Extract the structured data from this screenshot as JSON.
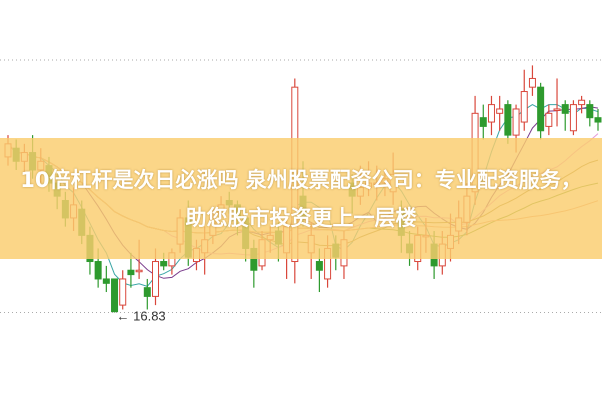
{
  "banner": {
    "title": "10倍杠杆是次日必涨吗 泉州股票配资公司：专业配资服务，助您股市投资更上一层楼"
  },
  "chart_data": {
    "type": "candlestick",
    "ylim": [
      14.8,
      24.0
    ],
    "grid": "dotted lines at top and at low",
    "annotations": [
      {
        "text": "16.83",
        "label": "← 16.83",
        "target": "lowest low"
      }
    ],
    "colors": {
      "up": "#d9473b",
      "down": "#2e9a2e",
      "ma": [
        "#3aa6a6",
        "#7a3c8c",
        "#e59ad8",
        "#a08a3a",
        "#6e9b2e",
        "#e8a080"
      ]
    },
    "candles": [
      [
        20.4,
        20.7,
        20.9,
        20.2
      ],
      [
        20.6,
        20.3,
        20.8,
        20.1
      ],
      [
        20.3,
        20.5,
        20.7,
        20.0
      ],
      [
        20.5,
        20.1,
        20.9,
        19.9
      ],
      [
        20.1,
        20.3,
        20.6,
        19.8
      ],
      [
        20.2,
        19.8,
        20.4,
        19.6
      ],
      [
        19.8,
        19.5,
        20.0,
        19.2
      ],
      [
        19.4,
        19.0,
        19.6,
        18.8
      ],
      [
        19.0,
        19.3,
        19.7,
        18.7
      ],
      [
        19.2,
        18.6,
        19.4,
        18.4
      ],
      [
        18.6,
        18.0,
        18.8,
        17.7
      ],
      [
        18.0,
        17.6,
        18.3,
        17.4
      ],
      [
        17.6,
        17.5,
        17.9,
        17.3
      ],
      [
        17.6,
        16.85,
        17.6,
        16.83
      ],
      [
        17.0,
        17.6,
        17.8,
        16.9
      ],
      [
        17.8,
        17.7,
        18.2,
        17.4
      ],
      [
        17.8,
        17.8,
        18.5,
        17.6
      ],
      [
        17.4,
        17.2,
        17.6,
        16.9
      ],
      [
        17.2,
        18.0,
        18.3,
        17.0
      ],
      [
        18.0,
        17.9,
        18.2,
        17.8
      ],
      [
        17.9,
        18.2,
        18.3,
        17.7
      ],
      [
        18.4,
        19.0,
        19.2,
        18.2
      ],
      [
        19.0,
        18.1,
        19.4,
        17.9
      ],
      [
        18.0,
        18.3,
        18.5,
        17.8
      ],
      [
        18.2,
        18.5,
        18.8,
        17.7
      ],
      [
        18.6,
        19.0,
        19.2,
        18.4
      ],
      [
        19.1,
        19.3,
        19.5,
        19.0
      ],
      [
        19.4,
        19.3,
        19.6,
        19.1
      ],
      [
        19.3,
        19.0,
        19.4,
        18.6
      ],
      [
        19.0,
        18.3,
        19.2,
        18.0
      ],
      [
        18.3,
        17.8,
        18.5,
        17.4
      ],
      [
        17.9,
        18.5,
        18.7,
        17.8
      ],
      [
        18.5,
        18.6,
        18.8,
        18.2
      ],
      [
        18.7,
        18.4,
        18.9,
        18.0
      ],
      [
        18.2,
        18.8,
        19.0,
        17.6
      ],
      [
        18.0,
        22.0,
        22.2,
        17.5
      ],
      [
        19.5,
        19.0,
        20.3,
        18.8
      ],
      [
        18.2,
        18.6,
        18.9,
        17.6
      ],
      [
        18.0,
        17.8,
        18.3,
        17.3
      ],
      [
        17.6,
        18.3,
        18.6,
        17.4
      ],
      [
        18.4,
        18.1,
        18.6,
        17.8
      ],
      [
        17.9,
        18.5,
        18.7,
        17.6
      ],
      [
        19.8,
        19.5,
        20.0,
        19.1
      ],
      [
        19.5,
        19.7,
        20.2,
        19.3
      ],
      [
        19.7,
        19.8,
        20.3,
        19.5
      ],
      [
        19.8,
        19.8,
        20.2,
        19.4
      ],
      [
        19.8,
        19.9,
        20.1,
        19.5
      ],
      [
        19.6,
        20.0,
        20.5,
        19.3
      ],
      [
        19.2,
        18.6,
        19.4,
        18.2
      ],
      [
        18.4,
        18.2,
        18.7,
        17.9
      ],
      [
        18.0,
        18.6,
        18.8,
        17.8
      ],
      [
        18.6,
        18.6,
        19.0,
        18.2
      ],
      [
        18.4,
        17.9,
        18.7,
        17.6
      ],
      [
        17.9,
        18.4,
        18.7,
        17.7
      ],
      [
        18.3,
        18.6,
        19.1,
        18.0
      ],
      [
        18.7,
        19.0,
        19.4,
        18.4
      ],
      [
        18.9,
        19.5,
        19.8,
        18.6
      ],
      [
        19.6,
        21.4,
        21.8,
        19.3
      ],
      [
        21.3,
        21.1,
        21.6,
        20.8
      ],
      [
        21.2,
        21.6,
        21.8,
        20.9
      ],
      [
        21.4,
        21.5,
        21.8,
        21.0
      ],
      [
        21.6,
        20.9,
        21.7,
        20.7
      ],
      [
        20.9,
        21.5,
        21.6,
        20.5
      ],
      [
        21.2,
        21.9,
        22.4,
        21.0
      ],
      [
        22.0,
        22.2,
        22.5,
        21.8
      ],
      [
        22.0,
        21.0,
        22.1,
        20.8
      ],
      [
        21.1,
        21.4,
        21.6,
        20.9
      ],
      [
        21.5,
        21.5,
        22.2,
        21.1
      ],
      [
        21.6,
        21.4,
        21.7,
        21.0
      ],
      [
        21.0,
        21.6,
        21.7,
        20.9
      ],
      [
        21.6,
        21.7,
        21.8,
        21.4
      ],
      [
        21.6,
        21.3,
        21.7,
        21.1
      ],
      [
        21.3,
        21.2,
        21.5,
        21.0
      ]
    ],
    "candle_format": [
      "open",
      "close",
      "high",
      "low"
    ]
  }
}
